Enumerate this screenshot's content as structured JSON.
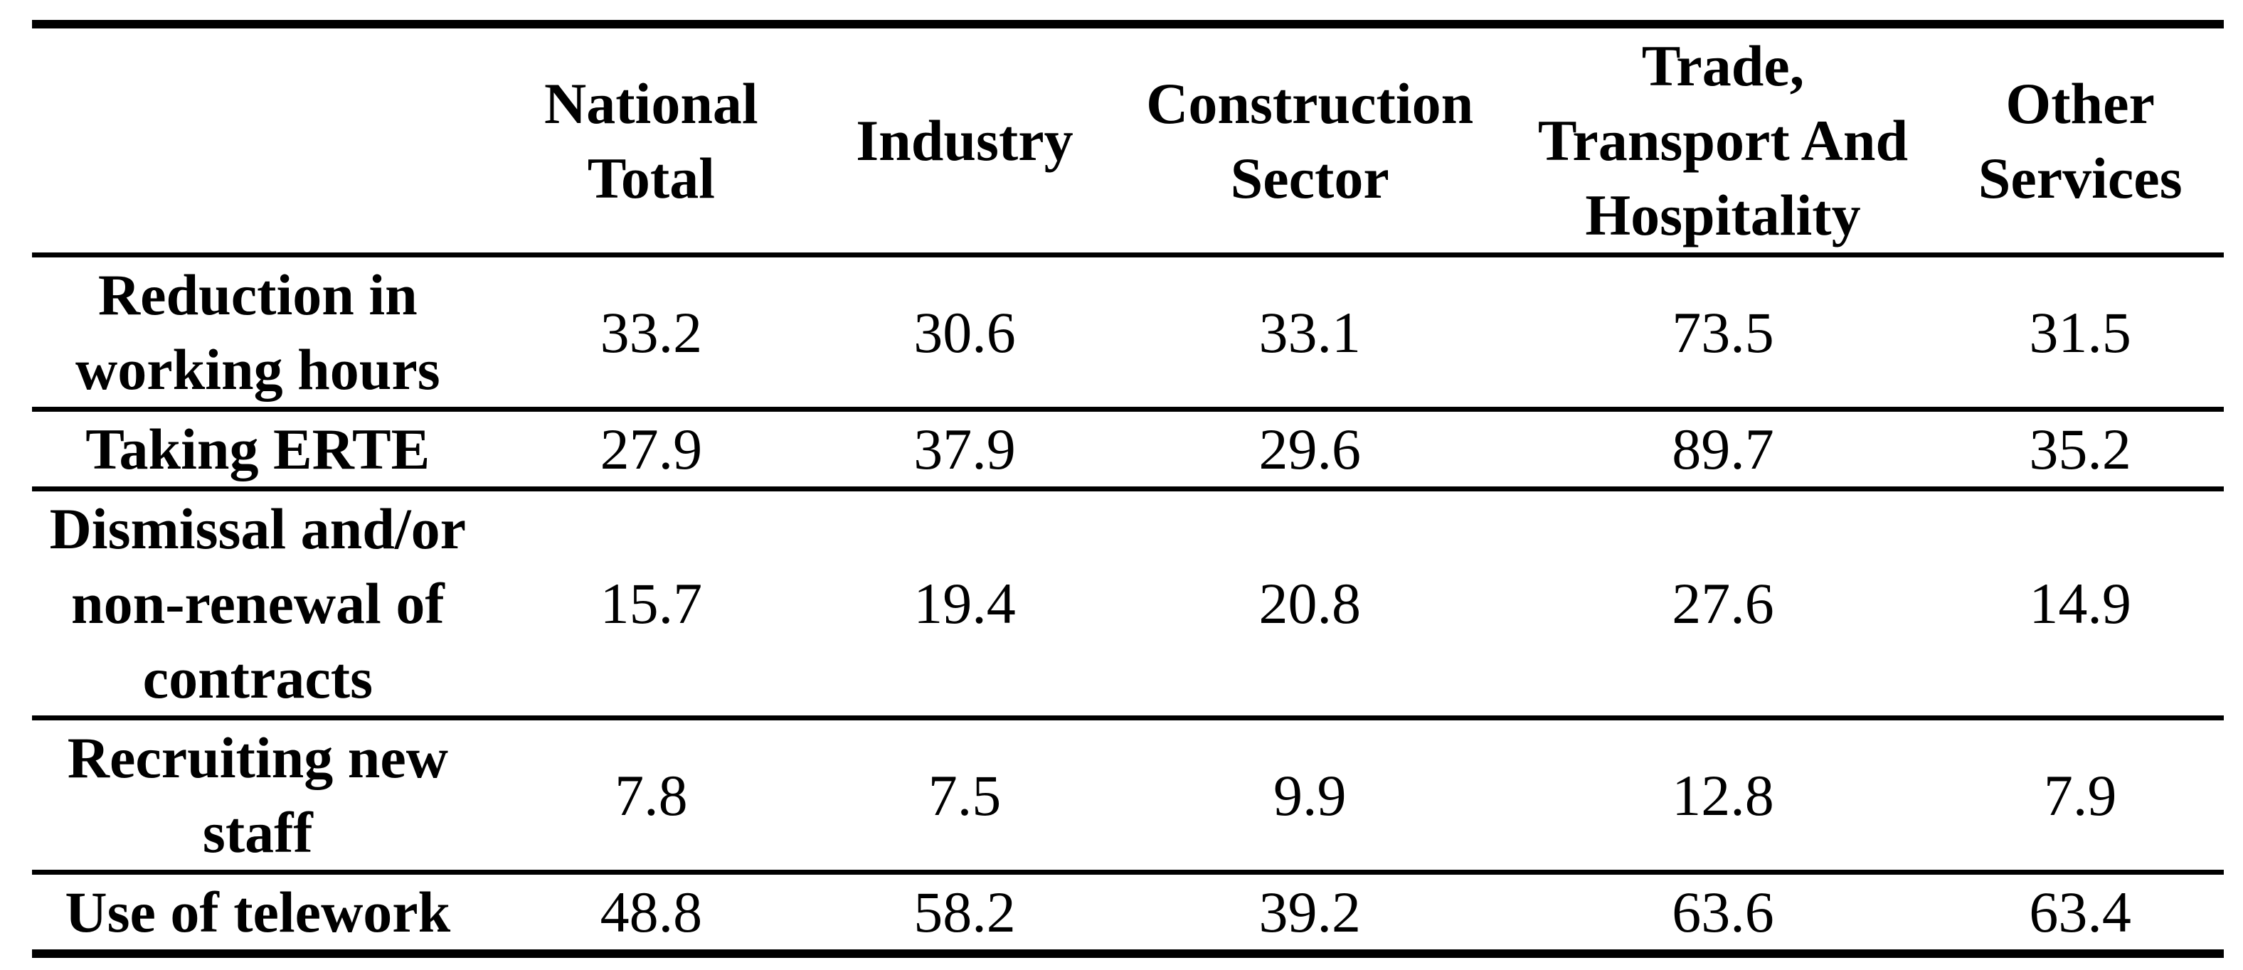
{
  "colors": {
    "background": "#ffffff",
    "text": "#000000",
    "rule": "#000000"
  },
  "table": {
    "column_headers": [
      "",
      "National\nTotal",
      "Industry",
      "Construction\nSector",
      "Trade,\nTransport And\nHospitality",
      "Other\nServices"
    ],
    "rows": [
      {
        "label": "Reduction in\nworking hours",
        "values": [
          "33.2",
          "30.6",
          "33.1",
          "73.5",
          "31.5"
        ]
      },
      {
        "label": "Taking ERTE",
        "values": [
          "27.9",
          "37.9",
          "29.6",
          "89.7",
          "35.2"
        ]
      },
      {
        "label": "Dismissal and/or\nnon-renewal of\ncontracts",
        "values": [
          "15.7",
          "19.4",
          "20.8",
          "27.6",
          "14.9"
        ]
      },
      {
        "label": "Recruiting new\nstaff",
        "values": [
          "7.8",
          "7.5",
          "9.9",
          "12.8",
          "7.9"
        ]
      },
      {
        "label": "Use of telework",
        "values": [
          "48.8",
          "58.2",
          "39.2",
          "63.6",
          "63.4"
        ]
      }
    ]
  },
  "chart_data": {
    "type": "table",
    "categories": [
      "National Total",
      "Industry",
      "Construction Sector",
      "Trade, Transport And Hospitality",
      "Other Services"
    ],
    "series": [
      {
        "name": "Reduction in working hours",
        "values": [
          33.2,
          30.6,
          33.1,
          73.5,
          31.5
        ]
      },
      {
        "name": "Taking ERTE",
        "values": [
          27.9,
          37.9,
          29.6,
          89.7,
          35.2
        ]
      },
      {
        "name": "Dismissal and/or non-renewal of contracts",
        "values": [
          15.7,
          19.4,
          20.8,
          27.6,
          14.9
        ]
      },
      {
        "name": "Recruiting new staff",
        "values": [
          7.8,
          7.5,
          9.9,
          12.8,
          7.9
        ]
      },
      {
        "name": "Use of telework",
        "values": [
          48.8,
          58.2,
          39.2,
          63.6,
          63.4
        ]
      }
    ]
  }
}
